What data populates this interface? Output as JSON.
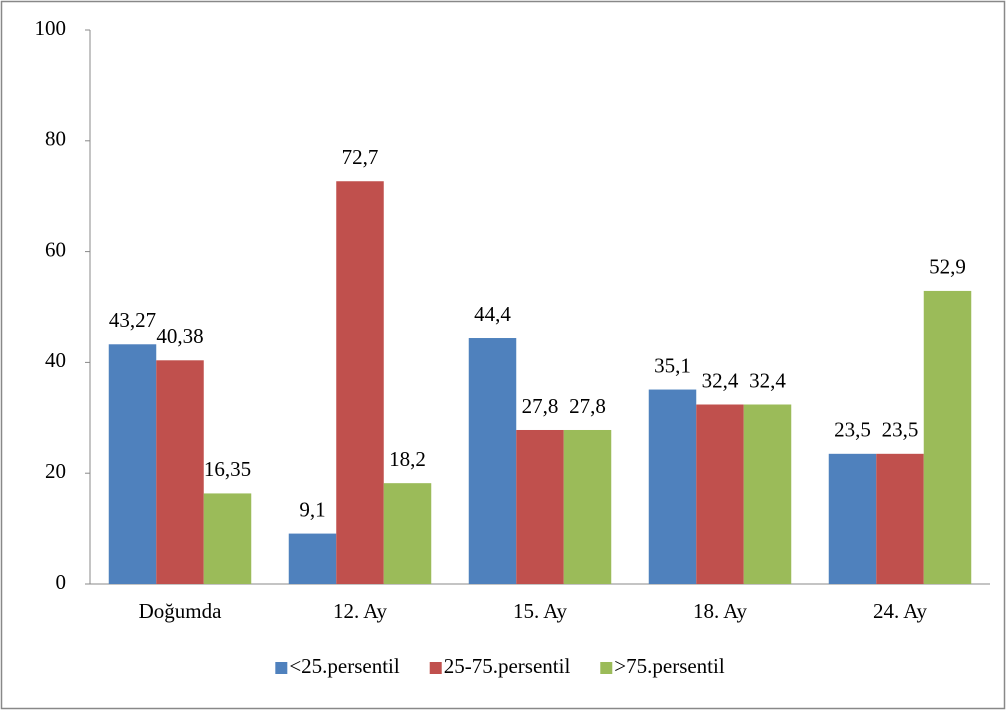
{
  "chart_data": {
    "type": "bar",
    "categories": [
      "Doğumda",
      "12. Ay",
      "15. Ay",
      "18. Ay",
      "24. Ay"
    ],
    "series": [
      {
        "name": "<25.persentil",
        "color": "#4f81bd",
        "values": [
          43.27,
          9.1,
          44.4,
          35.1,
          23.5
        ],
        "value_labels": [
          "43,27",
          "9,1",
          "44,4",
          "35,1",
          "23,5"
        ]
      },
      {
        "name": "25-75.persentil",
        "color": "#c0504d",
        "values": [
          40.38,
          72.7,
          27.8,
          32.4,
          23.5
        ],
        "value_labels": [
          "40,38",
          "72,7",
          "27,8",
          "32,4",
          "23,5"
        ]
      },
      {
        "name": ">75.persentil",
        "color": "#9bbb59",
        "values": [
          16.35,
          18.2,
          27.8,
          32.4,
          52.9
        ],
        "value_labels": [
          "16,35",
          "18,2",
          "27,8",
          "32,4",
          "52,9"
        ]
      }
    ],
    "ylim": [
      0,
      100
    ],
    "yticks": [
      0,
      20,
      40,
      60,
      80,
      100
    ],
    "legend": "bottom"
  }
}
